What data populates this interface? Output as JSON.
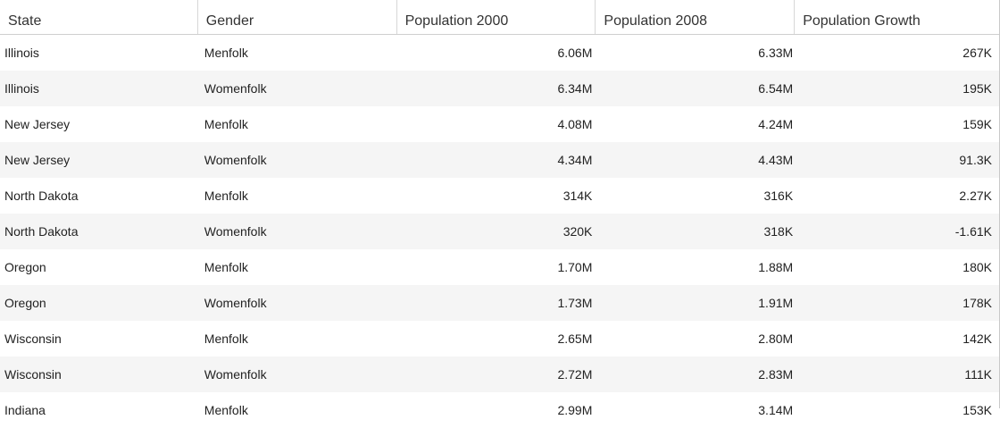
{
  "columns": [
    "State",
    "Gender",
    "Population 2000",
    "Population 2008",
    "Population Growth"
  ],
  "rows": [
    {
      "state": "Illinois",
      "gender": "Menfolk",
      "pop2000": "6.06M",
      "pop2008": "6.33M",
      "growth": "267K"
    },
    {
      "state": "Illinois",
      "gender": "Womenfolk",
      "pop2000": "6.34M",
      "pop2008": "6.54M",
      "growth": "195K"
    },
    {
      "state": "New Jersey",
      "gender": "Menfolk",
      "pop2000": "4.08M",
      "pop2008": "4.24M",
      "growth": "159K"
    },
    {
      "state": "New Jersey",
      "gender": "Womenfolk",
      "pop2000": "4.34M",
      "pop2008": "4.43M",
      "growth": "91.3K"
    },
    {
      "state": "North Dakota",
      "gender": "Menfolk",
      "pop2000": "314K",
      "pop2008": "316K",
      "growth": "2.27K"
    },
    {
      "state": "North Dakota",
      "gender": "Womenfolk",
      "pop2000": "320K",
      "pop2008": "318K",
      "growth": "-1.61K"
    },
    {
      "state": "Oregon",
      "gender": "Menfolk",
      "pop2000": "1.70M",
      "pop2008": "1.88M",
      "growth": "180K"
    },
    {
      "state": "Oregon",
      "gender": "Womenfolk",
      "pop2000": "1.73M",
      "pop2008": "1.91M",
      "growth": "178K"
    },
    {
      "state": "Wisconsin",
      "gender": "Menfolk",
      "pop2000": "2.65M",
      "pop2008": "2.80M",
      "growth": "142K"
    },
    {
      "state": "Wisconsin",
      "gender": "Womenfolk",
      "pop2000": "2.72M",
      "pop2008": "2.83M",
      "growth": "111K"
    },
    {
      "state": "Indiana",
      "gender": "Menfolk",
      "pop2000": "2.99M",
      "pop2008": "3.14M",
      "growth": "153K"
    }
  ]
}
